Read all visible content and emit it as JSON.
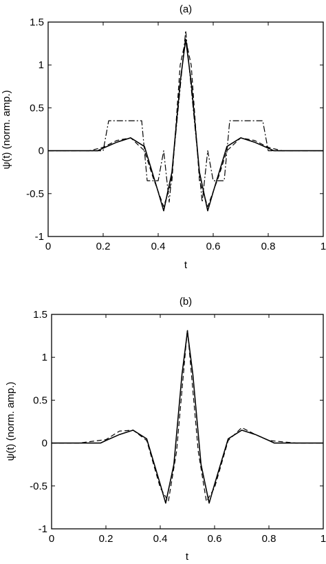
{
  "chart_data": [
    {
      "type": "line",
      "title": "(a)",
      "xlabel": "t",
      "ylabel": "ψ(t) (norm. amp.)",
      "xlim": [
        0,
        1
      ],
      "ylim": [
        -1,
        1.5
      ],
      "xticks": [
        "0",
        "0.2",
        "0.4",
        "0.6",
        "0.8",
        "1"
      ],
      "yticks": [
        "-1",
        "-0.5",
        "0",
        "0.5",
        "1",
        "1.5"
      ],
      "grid": false,
      "series": [
        {
          "style": "solid",
          "x": [
            0,
            0.1,
            0.18,
            0.2,
            0.25,
            0.3,
            0.35,
            0.4,
            0.42,
            0.45,
            0.48,
            0.5,
            0.52,
            0.55,
            0.58,
            0.6,
            0.65,
            0.7,
            0.75,
            0.8,
            0.82,
            0.9,
            1
          ],
          "y": [
            0,
            0,
            0,
            0.03,
            0.1,
            0.15,
            0.05,
            -0.48,
            -0.7,
            -0.25,
            0.8,
            1.3,
            0.8,
            -0.25,
            -0.7,
            -0.48,
            0.05,
            0.15,
            0.1,
            0.03,
            0,
            0,
            0
          ]
        },
        {
          "style": "dashed",
          "x": [
            0,
            0.15,
            0.2,
            0.25,
            0.3,
            0.35,
            0.38,
            0.42,
            0.45,
            0.48,
            0.5,
            0.52,
            0.55,
            0.58,
            0.62,
            0.65,
            0.7,
            0.75,
            0.8,
            0.85,
            1
          ],
          "y": [
            0,
            0,
            0.04,
            0.12,
            0.15,
            0.0,
            -0.3,
            -0.65,
            -0.35,
            1.0,
            1.3,
            1.0,
            -0.35,
            -0.65,
            -0.3,
            0.0,
            0.15,
            0.12,
            0.04,
            0,
            0
          ]
        },
        {
          "style": "dashdot",
          "x": [
            0,
            0.2,
            0.22,
            0.34,
            0.36,
            0.4,
            0.42,
            0.44,
            0.5,
            0.56,
            0.58,
            0.6,
            0.64,
            0.66,
            0.78,
            0.8,
            1
          ],
          "y": [
            0,
            0,
            0.35,
            0.35,
            -0.35,
            -0.35,
            0,
            -0.6,
            1.4,
            -0.6,
            0,
            -0.35,
            -0.35,
            0.35,
            0.35,
            0,
            0
          ]
        }
      ]
    },
    {
      "type": "line",
      "title": "(b)",
      "xlabel": "t",
      "ylabel": "ψ(t) (norm. amp.)",
      "xlim": [
        0,
        1
      ],
      "ylim": [
        -1,
        1.5
      ],
      "xticks": [
        "0",
        "0.2",
        "0.4",
        "0.6",
        "0.8",
        "1"
      ],
      "yticks": [
        "-1",
        "-0.5",
        "0",
        "0.5",
        "1",
        "1.5"
      ],
      "grid": false,
      "series": [
        {
          "style": "solid",
          "x": [
            0,
            0.1,
            0.18,
            0.2,
            0.25,
            0.3,
            0.35,
            0.4,
            0.42,
            0.45,
            0.48,
            0.5,
            0.52,
            0.55,
            0.58,
            0.6,
            0.65,
            0.7,
            0.75,
            0.8,
            0.82,
            0.9,
            1
          ],
          "y": [
            0,
            0,
            0,
            0.03,
            0.1,
            0.15,
            0.05,
            -0.48,
            -0.7,
            -0.25,
            0.8,
            1.3,
            0.8,
            -0.25,
            -0.7,
            -0.48,
            0.05,
            0.15,
            0.1,
            0.03,
            0,
            0,
            0
          ]
        },
        {
          "style": "dashed",
          "x": [
            0,
            0.1,
            0.2,
            0.25,
            0.3,
            0.35,
            0.4,
            0.43,
            0.46,
            0.5,
            0.54,
            0.57,
            0.6,
            0.65,
            0.7,
            0.75,
            0.8,
            0.9,
            1
          ],
          "y": [
            0,
            0,
            0.04,
            0.14,
            0.15,
            0.03,
            -0.52,
            -0.68,
            -0.1,
            1.33,
            -0.1,
            -0.68,
            -0.52,
            0.03,
            0.18,
            0.1,
            0.03,
            0,
            0
          ]
        }
      ]
    }
  ]
}
